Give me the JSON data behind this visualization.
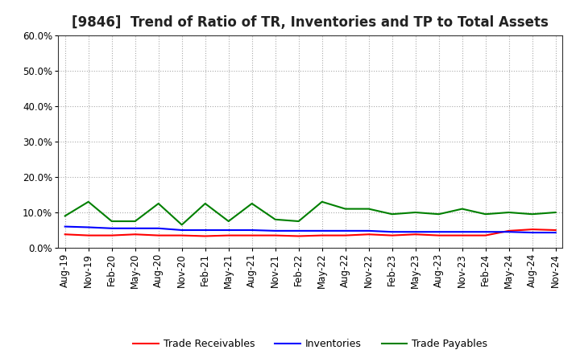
{
  "title": "[9846]  Trend of Ratio of TR, Inventories and TP to Total Assets",
  "x_labels": [
    "Aug-19",
    "Nov-19",
    "Feb-20",
    "May-20",
    "Aug-20",
    "Nov-20",
    "Feb-21",
    "May-21",
    "Aug-21",
    "Nov-21",
    "Feb-22",
    "May-22",
    "Aug-22",
    "Nov-22",
    "Feb-23",
    "May-23",
    "Aug-23",
    "Nov-23",
    "Feb-24",
    "May-24",
    "Aug-24",
    "Nov-24"
  ],
  "trade_receivables": [
    3.8,
    3.5,
    3.5,
    3.8,
    3.5,
    3.5,
    3.3,
    3.5,
    3.5,
    3.5,
    3.3,
    3.5,
    3.5,
    3.8,
    3.5,
    3.8,
    3.5,
    3.5,
    3.5,
    4.8,
    5.2,
    5.0
  ],
  "inventories": [
    6.0,
    5.8,
    5.5,
    5.5,
    5.5,
    5.0,
    5.0,
    5.0,
    5.0,
    4.8,
    4.8,
    4.8,
    4.8,
    4.8,
    4.5,
    4.5,
    4.5,
    4.5,
    4.5,
    4.5,
    4.3,
    4.3
  ],
  "trade_payables": [
    9.0,
    13.0,
    7.5,
    7.5,
    12.5,
    6.5,
    12.5,
    7.5,
    12.5,
    8.0,
    7.5,
    13.0,
    11.0,
    11.0,
    9.5,
    10.0,
    9.5,
    11.0,
    9.5,
    10.0,
    9.5,
    10.0
  ],
  "ylim": [
    0,
    60
  ],
  "yticks": [
    0,
    10,
    20,
    30,
    40,
    50,
    60
  ],
  "line_colors": {
    "trade_receivables": "#ff0000",
    "inventories": "#0000ff",
    "trade_payables": "#008000"
  },
  "legend_labels": [
    "Trade Receivables",
    "Inventories",
    "Trade Payables"
  ],
  "background_color": "#ffffff",
  "plot_bg_color": "#ffffff",
  "grid_color": "#aaaaaa",
  "title_fontsize": 12,
  "tick_fontsize": 8.5,
  "legend_fontsize": 9
}
